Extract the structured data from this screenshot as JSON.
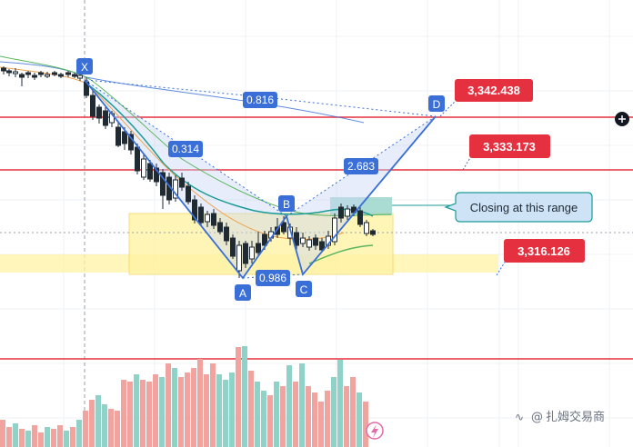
{
  "chart_data": {
    "type": "candlestick",
    "pattern_points": {
      "x_label": "X",
      "a_label": "A",
      "b_label": "B",
      "c_label": "C",
      "d_label": "D"
    },
    "ratios": {
      "xb": "0.314",
      "ac": "0.986",
      "bd": "2.683",
      "xd": "0.816"
    },
    "price_levels": [
      {
        "value": "3,342.438",
        "color": "#e5303f"
      },
      {
        "value": "3,333.173",
        "color": "#e5303f"
      },
      {
        "value": "3,316.126",
        "color": "#e5303f"
      }
    ],
    "annotation": "Closing at this range",
    "colors": {
      "pattern": "#3a6fd8",
      "level": "#e5303f",
      "zone": "#fff3a6",
      "rect_zone": "#8fd0c6",
      "vol_up": "#8fd3c8",
      "vol_down": "#f1a3a0"
    }
  },
  "watermark": "扎姆交易商"
}
